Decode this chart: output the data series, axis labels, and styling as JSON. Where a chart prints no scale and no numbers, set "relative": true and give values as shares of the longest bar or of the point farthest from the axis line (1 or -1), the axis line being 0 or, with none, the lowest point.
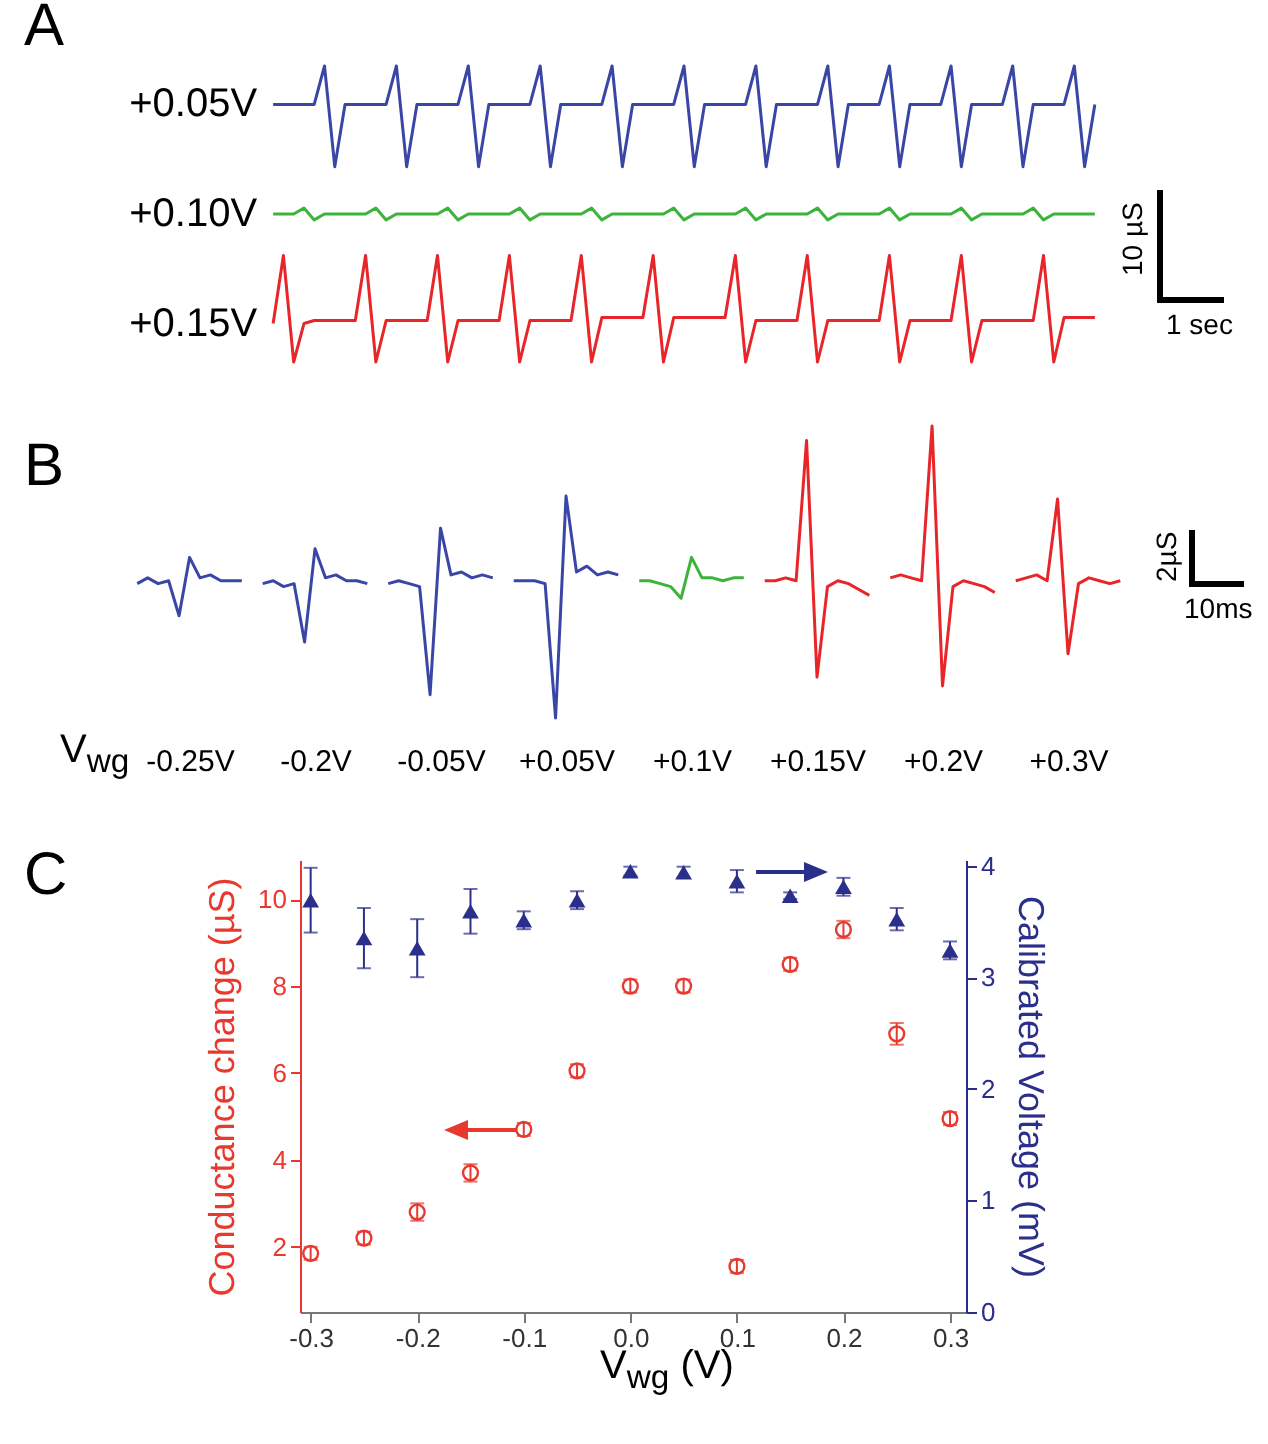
{
  "chart_data": [
    {
      "type": "line",
      "title": "A",
      "relative": true,
      "annotations": [
        "10 µS",
        "1 sec"
      ],
      "categories": [
        null,
        null,
        null,
        null,
        null,
        null,
        null,
        null,
        null,
        null,
        null,
        null,
        null,
        null,
        null,
        null,
        null,
        null,
        null,
        null,
        null,
        null,
        null,
        null,
        null,
        null,
        null,
        null,
        null,
        null,
        null,
        null,
        null,
        null,
        null,
        null,
        null,
        null,
        null,
        null,
        null,
        null,
        null,
        null,
        null,
        null,
        null,
        null,
        null,
        null,
        null,
        null,
        null,
        null,
        null,
        null,
        null,
        null,
        null,
        null,
        null,
        null,
        null,
        null,
        null,
        null,
        null,
        null,
        null,
        null,
        null,
        null,
        null,
        null,
        null,
        null,
        null,
        null,
        null,
        null,
        null
      ],
      "series": [
        {
          "name": "+0.05V",
          "color": "#3a46a6",
          "values": [
            0.87,
            0.87,
            0.87,
            0.87,
            0.87,
            1,
            0.66,
            0.87,
            0.87,
            0.87,
            0.87,
            0.87,
            1,
            0.66,
            0.87,
            0.87,
            0.87,
            0.87,
            0.87,
            1,
            0.66,
            0.87,
            0.87,
            0.87,
            0.87,
            0.87,
            1,
            0.66,
            0.87,
            0.87,
            0.87,
            0.87,
            0.87,
            1,
            0.66,
            0.87,
            0.87,
            0.87,
            0.87,
            0.87,
            1,
            0.66,
            0.87,
            0.87,
            0.87,
            0.87,
            0.87,
            1,
            0.66,
            0.87,
            0.87,
            0.87,
            0.87,
            0.87,
            1,
            0.66,
            0.87,
            0.87,
            0.87,
            0.87,
            1,
            0.66,
            0.87,
            0.87,
            0.87,
            0.87,
            1,
            0.66,
            0.87,
            0.87,
            0.87,
            0.87,
            1,
            0.66,
            0.87,
            0.87,
            0.87,
            0.87,
            1,
            0.66,
            0.87
          ]
        },
        {
          "name": "+0.10V",
          "color": "#3cb43c",
          "values": [
            0.5,
            0.5,
            0.5,
            0.52,
            0.48,
            0.5,
            0.5,
            0.5,
            0.5,
            0.5,
            0.52,
            0.48,
            0.5,
            0.5,
            0.5,
            0.5,
            0.5,
            0.52,
            0.48,
            0.5,
            0.5,
            0.5,
            0.5,
            0.5,
            0.52,
            0.48,
            0.5,
            0.5,
            0.5,
            0.5,
            0.5,
            0.52,
            0.48,
            0.5,
            0.5,
            0.5,
            0.5,
            0.5,
            0.5,
            0.52,
            0.48,
            0.5,
            0.5,
            0.5,
            0.5,
            0.5,
            0.52,
            0.48,
            0.5,
            0.5,
            0.5,
            0.5,
            0.5,
            0.52,
            0.48,
            0.5,
            0.5,
            0.5,
            0.5,
            0.5,
            0.52,
            0.48,
            0.5,
            0.5,
            0.5,
            0.5,
            0.5,
            0.52,
            0.48,
            0.5,
            0.5,
            0.5,
            0.5,
            0.5,
            0.52,
            0.48,
            0.5,
            0.5,
            0.5,
            0.5,
            0.5
          ]
        },
        {
          "name": "+0.15V",
          "color": "#e8262a",
          "values": [
            0.13,
            0.36,
            0,
            0.13,
            0.14,
            0.14,
            0.14,
            0.14,
            0.14,
            0.36,
            0,
            0.14,
            0.14,
            0.14,
            0.14,
            0.14,
            0.36,
            0,
            0.14,
            0.14,
            0.14,
            0.14,
            0.14,
            0.36,
            0,
            0.14,
            0.14,
            0.14,
            0.14,
            0.14,
            0.36,
            0,
            0.15,
            0.15,
            0.15,
            0.15,
            0.15,
            0.36,
            0,
            0.15,
            0.15,
            0.15,
            0.15,
            0.15,
            0.15,
            0.36,
            0,
            0.14,
            0.14,
            0.14,
            0.14,
            0.14,
            0.36,
            0,
            0.14,
            0.14,
            0.14,
            0.14,
            0.14,
            0.14,
            0.36,
            0,
            0.14,
            0.14,
            0.14,
            0.14,
            0.14,
            0.36,
            0,
            0.14,
            0.14,
            0.14,
            0.14,
            0.14,
            0.14,
            0.36,
            0,
            0.15,
            0.15,
            0.15,
            0.15
          ]
        }
      ]
    },
    {
      "type": "line",
      "title": "B",
      "relative": true,
      "xlabel": "V$_{wg}$",
      "annotations": [
        "2µS",
        "10ms"
      ],
      "categories": [
        null,
        null,
        null,
        null,
        null,
        "-0.25V",
        null,
        null,
        null,
        null,
        null,
        null,
        null,
        null,
        null,
        null,
        null,
        "-0.2V",
        null,
        null,
        null,
        null,
        null,
        null,
        null,
        null,
        null,
        null,
        null,
        "-0.05V",
        null,
        null,
        null,
        null,
        null,
        null,
        null,
        null,
        null,
        null,
        null,
        "+0.05V",
        null,
        null,
        null,
        null,
        null,
        null,
        null,
        null,
        null,
        null,
        null,
        "+0.1V",
        null,
        null,
        null,
        null,
        null,
        null,
        null,
        null,
        null,
        null,
        null,
        "+0.15V",
        null,
        null,
        null,
        null,
        null,
        null,
        null,
        null,
        null,
        null,
        null,
        "+0.2V",
        null,
        null,
        null,
        null,
        null,
        null,
        null,
        null,
        null,
        null,
        null,
        "+0.3V",
        null,
        null,
        null,
        null,
        null,
        null
      ],
      "series": [
        {
          "color": "#3a46a6",
          "values": [
            0.46,
            0.48,
            0.46,
            0.47,
            0.35,
            0.55,
            0.48,
            0.49,
            0.47,
            0.47,
            0.47,
            null,
            0.46,
            0.47,
            0.45,
            0.46,
            0.26,
            0.58,
            0.48,
            0.49,
            0.47,
            0.47,
            0.46,
            null,
            0.46,
            0.47,
            0.46,
            0.45,
            0.08,
            0.65,
            0.49,
            0.5,
            0.48,
            0.49,
            0.48,
            null,
            0.47,
            0.47,
            0.47,
            0.46,
            0,
            0.76,
            0.5,
            0.52,
            0.49,
            0.5,
            0.49,
            null,
            null,
            null,
            null,
            null,
            null,
            null,
            null,
            null,
            null,
            null,
            null,
            null,
            null,
            null,
            null,
            null,
            null,
            null,
            null,
            null,
            null,
            null,
            null,
            null,
            null,
            null,
            null,
            null,
            null,
            null,
            null,
            null,
            null,
            null,
            null,
            null,
            null,
            null,
            null,
            null,
            null,
            null,
            null,
            null,
            null,
            null,
            null,
            null
          ]
        },
        {
          "color": "#3cb43c",
          "values": [
            null,
            null,
            null,
            null,
            null,
            null,
            null,
            null,
            null,
            null,
            null,
            null,
            null,
            null,
            null,
            null,
            null,
            null,
            null,
            null,
            null,
            null,
            null,
            null,
            null,
            null,
            null,
            null,
            null,
            null,
            null,
            null,
            null,
            null,
            null,
            null,
            null,
            null,
            null,
            null,
            null,
            null,
            null,
            null,
            null,
            null,
            null,
            null,
            0.47,
            0.47,
            0.46,
            0.45,
            0.41,
            0.55,
            0.48,
            0.48,
            0.47,
            0.48,
            0.48,
            null,
            null,
            null,
            null,
            null,
            null,
            null,
            null,
            null,
            null,
            null,
            null,
            null,
            null,
            null,
            null,
            null,
            null,
            null,
            null,
            null,
            null,
            null,
            null,
            null,
            null,
            null,
            null,
            null,
            null,
            null,
            null,
            null,
            null,
            null,
            null,
            null
          ]
        },
        {
          "color": "#e8262a",
          "values": [
            null,
            null,
            null,
            null,
            null,
            null,
            null,
            null,
            null,
            null,
            null,
            null,
            null,
            null,
            null,
            null,
            null,
            null,
            null,
            null,
            null,
            null,
            null,
            null,
            null,
            null,
            null,
            null,
            null,
            null,
            null,
            null,
            null,
            null,
            null,
            null,
            null,
            null,
            null,
            null,
            null,
            null,
            null,
            null,
            null,
            null,
            null,
            null,
            null,
            null,
            null,
            null,
            null,
            null,
            null,
            null,
            null,
            null,
            null,
            null,
            0.47,
            0.47,
            0.48,
            0.47,
            0.95,
            0.14,
            0.45,
            0.47,
            0.46,
            0.44,
            0.42,
            null,
            0.48,
            0.49,
            0.48,
            0.47,
            1,
            0.11,
            0.45,
            0.47,
            0.46,
            0.45,
            0.43,
            null,
            0.47,
            0.48,
            0.49,
            0.47,
            0.75,
            0.22,
            0.46,
            0.48,
            0.47,
            0.46,
            0.47,
            null
          ]
        }
      ]
    },
    {
      "type": "scatter",
      "title": "C",
      "xlabel": "V$_{wg}$ (V)",
      "ylabel": "Conductance change (µS)",
      "y2label": "Calibrated Voltage (mV)",
      "x": [
        -0.3,
        -0.25,
        -0.2,
        -0.15,
        -0.1,
        -0.05,
        0,
        0.05,
        0.1,
        0.15,
        0.2,
        0.25,
        0.3
      ],
      "xlim": [
        -0.31,
        0.315
      ],
      "xticks": [
        -0.3,
        -0.2,
        -0.1,
        {
          "value": 0,
          "label": "0.0"
        },
        0.1,
        0.2,
        0.3
      ],
      "ylim": [
        0.5,
        10.9
      ],
      "yticks": [
        2,
        4,
        6,
        8,
        10
      ],
      "y2lim": [
        0,
        4.05
      ],
      "y2ticks": [
        0,
        1,
        2,
        3,
        4
      ],
      "series": [
        {
          "color": "#e8392f",
          "marker": "circle",
          "values": [
            1.85,
            2.2,
            2.8,
            3.7,
            4.7,
            6.05,
            8,
            8,
            1.55,
            8.5,
            9.3,
            6.9,
            4.95
          ],
          "errors": [
            0.15,
            0.15,
            0.2,
            0.2,
            0.15,
            0.15,
            0.15,
            0.15,
            0.15,
            0.15,
            0.2,
            0.25,
            0.15
          ]
        },
        {
          "color": "#2b2f8c",
          "marker": "triangle",
          "axis": "y2",
          "values": [
            3.69,
            3.35,
            3.26,
            3.59,
            3.51,
            3.69,
            3.95,
            3.94,
            3.86,
            3.73,
            3.81,
            3.52,
            3.24
          ],
          "errors": [
            0.29,
            0.27,
            0.26,
            0.2,
            0.08,
            0.08,
            0.04,
            0.05,
            0.1,
            0.03,
            0.08,
            0.1,
            0.08
          ]
        }
      ]
    }
  ]
}
